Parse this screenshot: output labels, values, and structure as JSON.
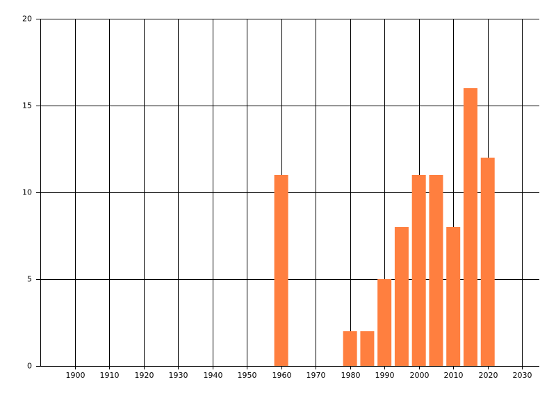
{
  "chart_data": {
    "type": "bar",
    "x": [
      1960,
      1980,
      1985,
      1990,
      1995,
      2000,
      2005,
      2010,
      2015,
      2020
    ],
    "values": [
      11,
      2,
      2,
      5,
      8,
      11,
      11,
      8,
      16,
      12
    ],
    "color": "#ff7f3f",
    "xlim": [
      1890,
      2035
    ],
    "xticks": [
      1900,
      1910,
      1920,
      1930,
      1940,
      1950,
      1960,
      1970,
      1980,
      1990,
      2000,
      2010,
      2020,
      2030
    ],
    "ylim": [
      0,
      20
    ],
    "yticks": [
      0,
      5,
      10,
      15,
      20
    ],
    "grid": true
  }
}
